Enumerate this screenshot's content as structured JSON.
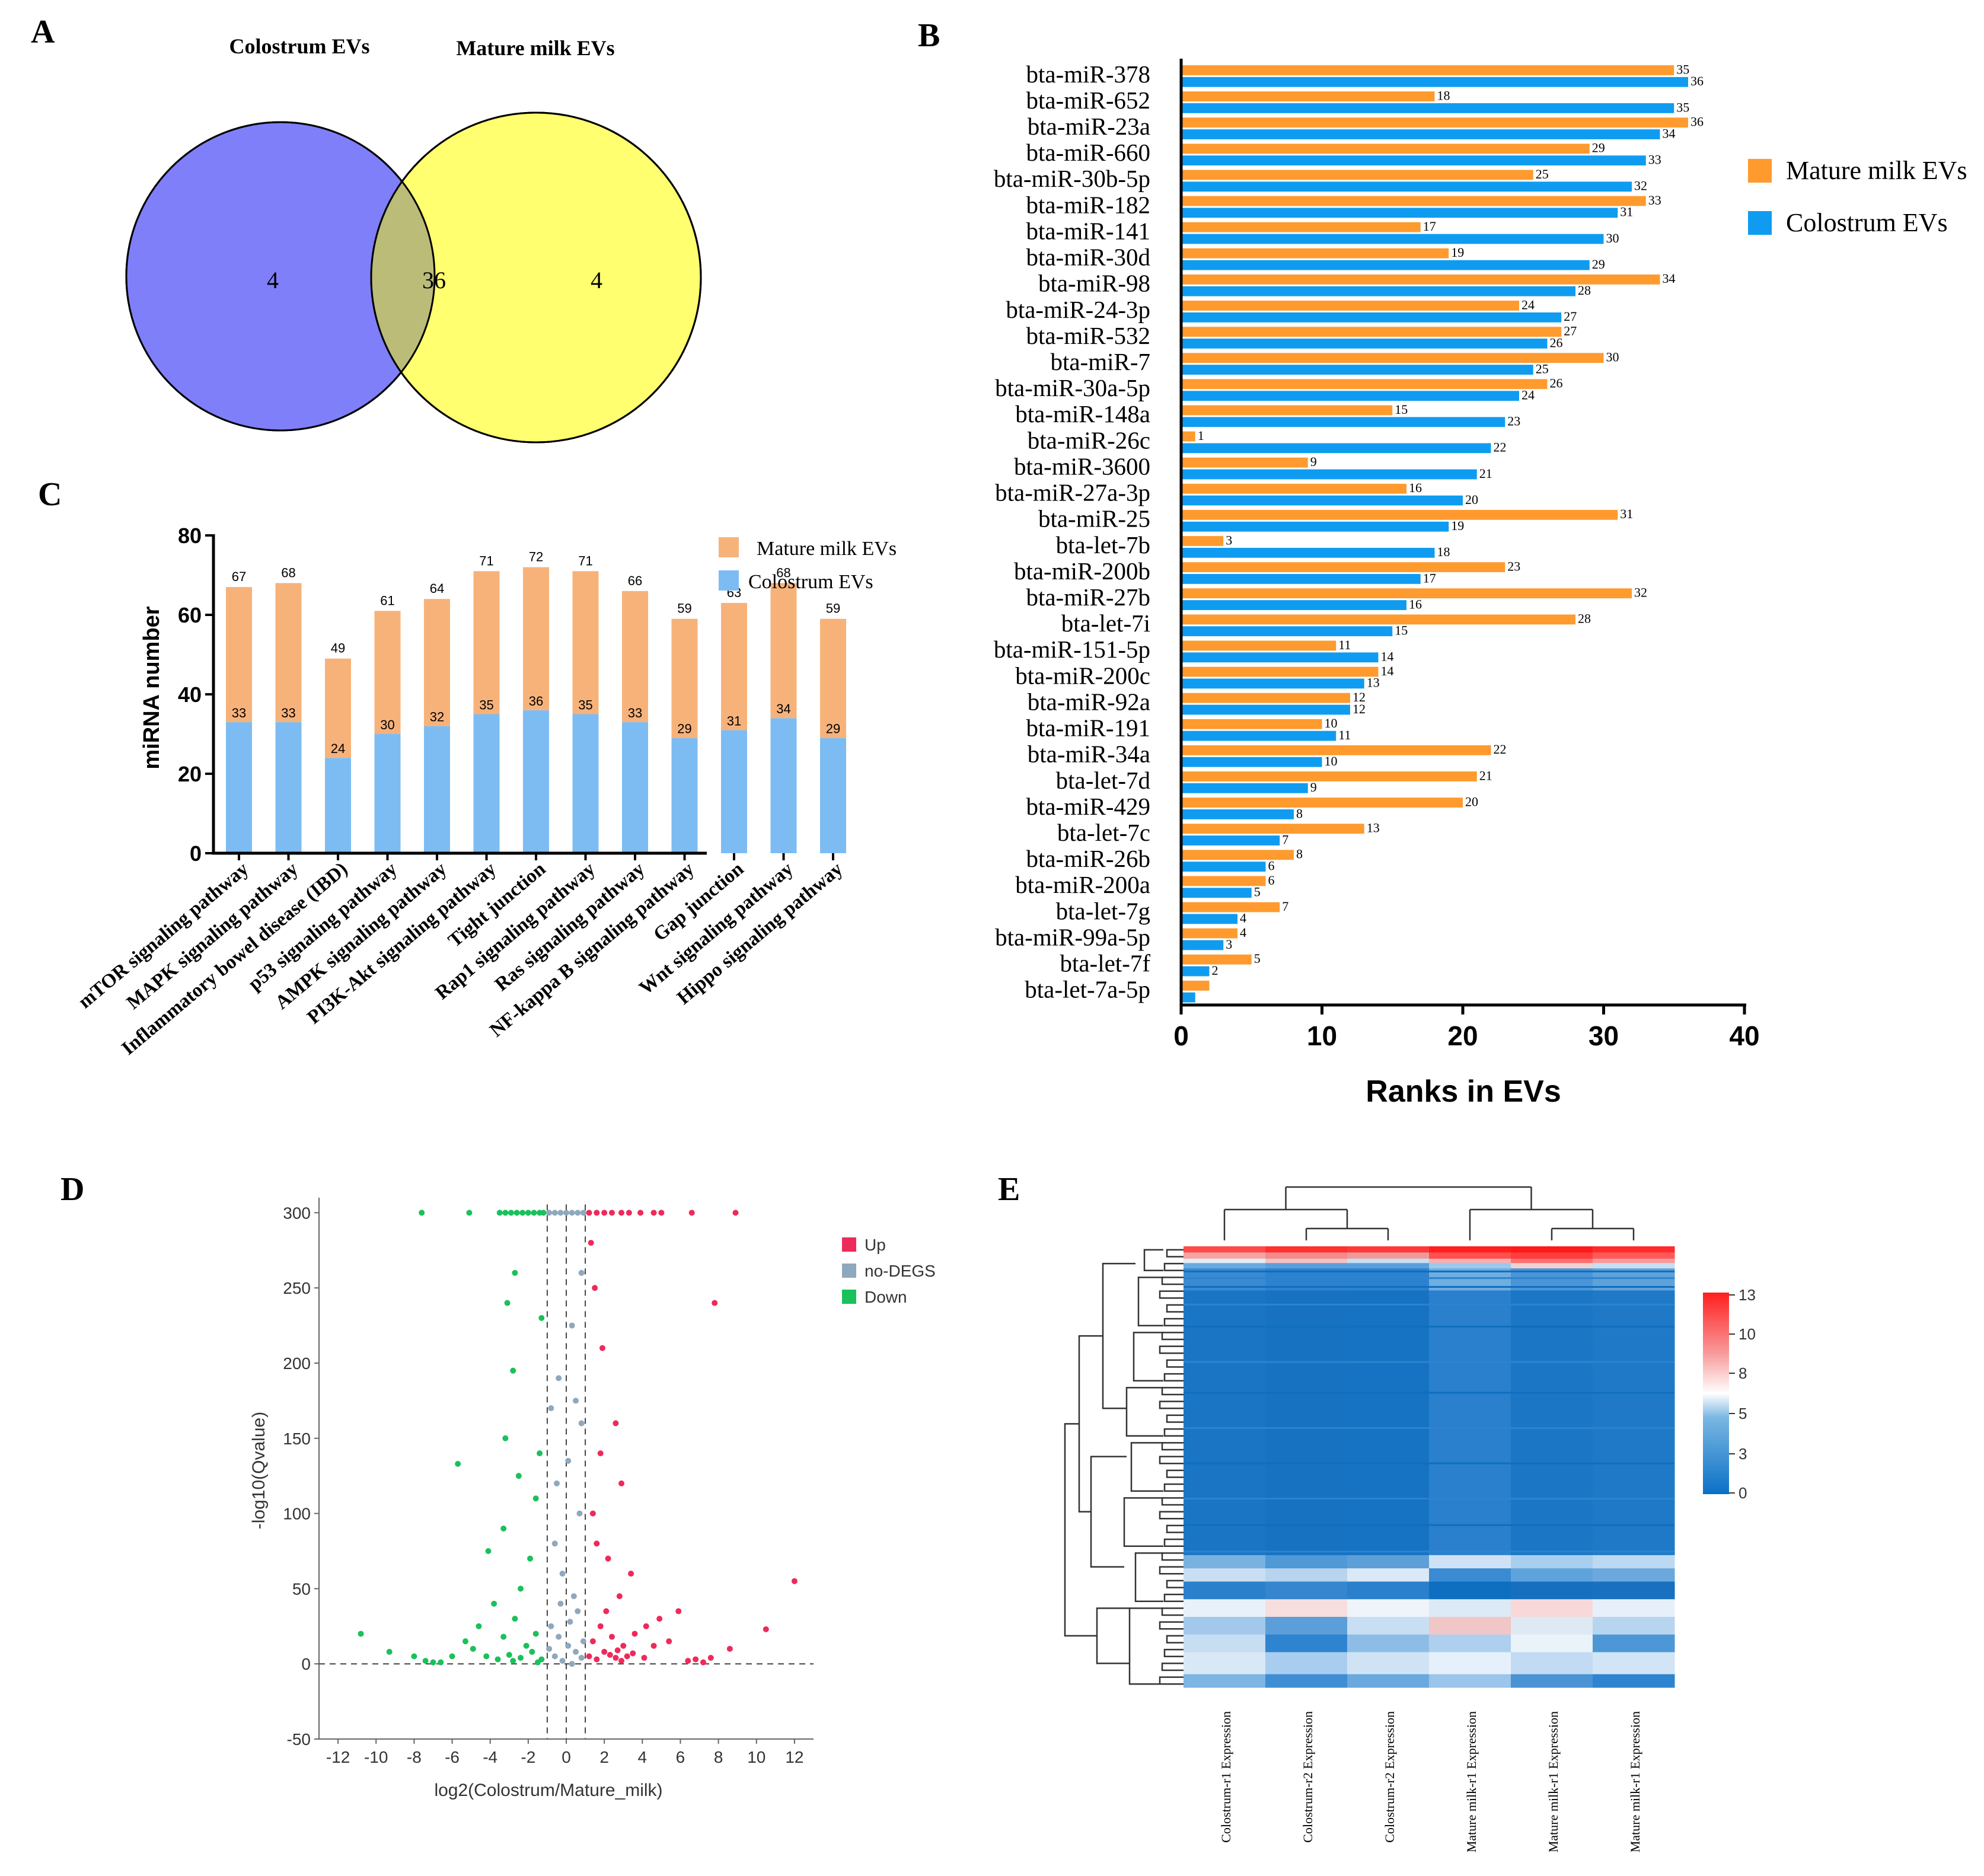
{
  "panels": {
    "A": {
      "label": "A",
      "left_title": "Colostrum EVs",
      "right_title": "Mature milk EVs",
      "left_only": "4",
      "overlap": "36",
      "right_only": "4",
      "colors": {
        "left": "#7f7ffa",
        "right": "#ffff70",
        "overlap": "#bcbc79"
      }
    },
    "B": {
      "label": "B"
    },
    "C": {
      "label": "C"
    },
    "D": {
      "label": "D"
    },
    "E": {
      "label": "E"
    }
  },
  "chart_data": [
    {
      "id": "B",
      "type": "bar",
      "orientation": "horizontal",
      "xlabel": "Ranks in EVs",
      "xlim": [
        0,
        40
      ],
      "xticks": [
        0,
        10,
        20,
        30,
        40
      ],
      "categories": [
        "bta-miR-378",
        "bta-miR-652",
        "bta-miR-23a",
        "bta-miR-660",
        "bta-miR-30b-5p",
        "bta-miR-182",
        "bta-miR-141",
        "bta-miR-30d",
        "bta-miR-98",
        "bta-miR-24-3p",
        "bta-miR-532",
        "bta-miR-7",
        "bta-miR-30a-5p",
        "bta-miR-148a",
        "bta-miR-26c",
        "bta-miR-3600",
        "bta-miR-27a-3p",
        "bta-miR-25",
        "bta-let-7b",
        "bta-miR-200b",
        "bta-miR-27b",
        "bta-let-7i",
        "bta-miR-151-5p",
        "bta-miR-200c",
        "bta-miR-92a",
        "bta-miR-191",
        "bta-miR-34a",
        "bta-let-7d",
        "bta-miR-429",
        "bta-let-7c",
        "bta-miR-26b",
        "bta-miR-200a",
        "bta-let-7g",
        "bta-miR-99a-5p",
        "bta-let-7f",
        "bta-let-7a-5p"
      ],
      "series": [
        {
          "name": "Mature milk EVs",
          "color": "#ff9a2e",
          "values": [
            35,
            18,
            36,
            29,
            25,
            33,
            17,
            19,
            34,
            24,
            27,
            30,
            26,
            15,
            1,
            9,
            16,
            31,
            3,
            23,
            32,
            28,
            11,
            14,
            12,
            10,
            22,
            21,
            20,
            13,
            8,
            6,
            7,
            4,
            5,
            2
          ],
          "labels": [
            "35",
            "18",
            "36",
            "29",
            "25",
            "33",
            "17",
            "19",
            "34",
            "24",
            "27",
            "30",
            "26",
            "15",
            "1",
            "9",
            "16",
            "31",
            "3",
            "23",
            "32",
            "28",
            "11",
            "14",
            "12",
            "10",
            "22",
            "21",
            "20",
            "13",
            "8",
            "6",
            "7",
            "4",
            "5",
            ""
          ]
        },
        {
          "name": "Colostrum EVs",
          "color": "#0f9cf0",
          "values": [
            36,
            35,
            34,
            33,
            32,
            31,
            30,
            29,
            28,
            27,
            26,
            25,
            24,
            23,
            22,
            21,
            20,
            19,
            18,
            17,
            16,
            15,
            14,
            13,
            12,
            11,
            10,
            9,
            8,
            7,
            6,
            5,
            4,
            3,
            2,
            1
          ],
          "labels": [
            "36",
            "35",
            "34",
            "33",
            "32",
            "31",
            "30",
            "29",
            "28",
            "27",
            "26",
            "25",
            "24",
            "23",
            "22",
            "21",
            "20",
            "19",
            "18",
            "17",
            "16",
            "15",
            "14",
            "13",
            "12",
            "11",
            "10",
            "9",
            "8",
            "7",
            "6",
            "5",
            "4",
            "3",
            "2",
            ""
          ]
        }
      ]
    },
    {
      "id": "C",
      "type": "bar",
      "stacked": true,
      "ylabel": "miRNA number",
      "ylim": [
        0,
        80
      ],
      "yticks": [
        0,
        20,
        40,
        60,
        80
      ],
      "categories": [
        "mTOR signaling pathway",
        "MAPK signaling pathway",
        "Inflammatory bowel disease (IBD)",
        "p53 signaling pathway",
        "AMPK signaling pathway",
        "PI3K-Akt signaling pathway",
        "Tight junction",
        "Rap1 signaling pathway",
        "Ras signaling pathway",
        "NF-kappa B signaling pathway",
        "Gap junction",
        "Wnt signaling pathway",
        "Hippo signaling pathway"
      ],
      "series": [
        {
          "name": "Colostrum EVs",
          "color": "#7dbcf3",
          "values": [
            33,
            33,
            24,
            30,
            32,
            35,
            36,
            35,
            33,
            29,
            31,
            34,
            29
          ]
        },
        {
          "name": "Mature milk EVs",
          "color": "#f7b27a",
          "values": [
            34,
            35,
            25,
            31,
            32,
            36,
            36,
            36,
            33,
            30,
            32,
            34,
            30
          ]
        }
      ],
      "totals": [
        67,
        68,
        49,
        61,
        64,
        71,
        72,
        71,
        66,
        59,
        63,
        68,
        59
      ]
    },
    {
      "id": "D",
      "type": "scatter",
      "title": "",
      "xlabel": "log2(Colostrum/Mature_milk)",
      "ylabel": "-log10(Qvalue)",
      "xlim": [
        -13,
        13
      ],
      "ylim": [
        -50,
        310
      ],
      "xticks": [
        -12,
        -10,
        -8,
        -6,
        -4,
        -2,
        0,
        2,
        4,
        6,
        8,
        10,
        12
      ],
      "yticks": [
        -50,
        0,
        50,
        100,
        150,
        200,
        250,
        300
      ],
      "threshold_lines": {
        "x": [
          -1,
          0,
          1
        ],
        "y": [
          0
        ]
      },
      "legend": [
        {
          "name": "Up",
          "color": "#ee2a5a"
        },
        {
          "name": "no-DEGS",
          "color": "#8fa8bd"
        },
        {
          "name": "Down",
          "color": "#1ac15b"
        }
      ],
      "series": [
        {
          "name": "Up",
          "color": "#ee2a5a",
          "points": [
            [
              1.2,
              300
            ],
            [
              1.6,
              300
            ],
            [
              2.0,
              300
            ],
            [
              2.4,
              300
            ],
            [
              2.9,
              300
            ],
            [
              3.3,
              300
            ],
            [
              3.9,
              300
            ],
            [
              4.6,
              300
            ],
            [
              5.0,
              300
            ],
            [
              6.6,
              300
            ],
            [
              8.9,
              300
            ],
            [
              7.8,
              240
            ],
            [
              1.3,
              280
            ],
            [
              1.5,
              250
            ],
            [
              1.9,
              210
            ],
            [
              2.6,
              160
            ],
            [
              2.9,
              120
            ],
            [
              1.8,
              140
            ],
            [
              1.4,
              100
            ],
            [
              1.6,
              80
            ],
            [
              2.2,
              70
            ],
            [
              3.4,
              60
            ],
            [
              2.8,
              45
            ],
            [
              2.1,
              35
            ],
            [
              4.9,
              30
            ],
            [
              5.9,
              35
            ],
            [
              4.2,
              25
            ],
            [
              3.6,
              20
            ],
            [
              12.0,
              55
            ],
            [
              10.5,
              23
            ],
            [
              8.6,
              10
            ],
            [
              1.2,
              5
            ],
            [
              1.6,
              3
            ],
            [
              2.0,
              8
            ],
            [
              2.3,
              6
            ],
            [
              2.6,
              4
            ],
            [
              2.9,
              2
            ],
            [
              3.2,
              5
            ],
            [
              3.5,
              7
            ],
            [
              4.1,
              4
            ],
            [
              4.6,
              12
            ],
            [
              5.4,
              15
            ],
            [
              6.4,
              2
            ],
            [
              6.8,
              3
            ],
            [
              7.2,
              1
            ],
            [
              7.6,
              4
            ],
            [
              1.4,
              15
            ],
            [
              1.8,
              25
            ],
            [
              2.4,
              18
            ],
            [
              2.7,
              9
            ],
            [
              3.0,
              12
            ]
          ]
        },
        {
          "name": "no-DEGS",
          "color": "#8fa8bd",
          "points": [
            [
              -0.9,
              300
            ],
            [
              -0.6,
              300
            ],
            [
              -0.3,
              300
            ],
            [
              0.0,
              300
            ],
            [
              0.3,
              300
            ],
            [
              0.6,
              300
            ],
            [
              0.9,
              300
            ],
            [
              0.8,
              260
            ],
            [
              0.3,
              225
            ],
            [
              -0.4,
              190
            ],
            [
              -0.8,
              170
            ],
            [
              0.5,
              175
            ],
            [
              0.1,
              135
            ],
            [
              -0.5,
              120
            ],
            [
              0.8,
              160
            ],
            [
              0.7,
              100
            ],
            [
              -0.6,
              80
            ],
            [
              -0.2,
              60
            ],
            [
              0.4,
              45
            ],
            [
              0.6,
              35
            ],
            [
              -0.8,
              25
            ],
            [
              -0.4,
              18
            ],
            [
              0.1,
              12
            ],
            [
              0.5,
              8
            ],
            [
              -0.6,
              5
            ],
            [
              0.8,
              4
            ],
            [
              -0.2,
              2
            ],
            [
              0.3,
              0
            ],
            [
              -0.9,
              10
            ],
            [
              0.9,
              15
            ],
            [
              0.2,
              28
            ],
            [
              -0.3,
              40
            ]
          ]
        },
        {
          "name": "Down",
          "color": "#1ac15b",
          "points": [
            [
              -7.6,
              300
            ],
            [
              -5.1,
              300
            ],
            [
              -3.5,
              300
            ],
            [
              -3.2,
              300
            ],
            [
              -2.9,
              300
            ],
            [
              -2.6,
              300
            ],
            [
              -2.3,
              300
            ],
            [
              -2.0,
              300
            ],
            [
              -1.7,
              300
            ],
            [
              -1.4,
              300
            ],
            [
              -1.2,
              300
            ],
            [
              -2.7,
              260
            ],
            [
              -3.1,
              240
            ],
            [
              -1.3,
              230
            ],
            [
              -2.8,
              195
            ],
            [
              -3.2,
              150
            ],
            [
              -5.7,
              133
            ],
            [
              -1.4,
              140
            ],
            [
              -2.5,
              125
            ],
            [
              -1.6,
              110
            ],
            [
              -4.1,
              75
            ],
            [
              -3.3,
              90
            ],
            [
              -1.9,
              70
            ],
            [
              -2.4,
              50
            ],
            [
              -3.8,
              40
            ],
            [
              -4.6,
              25
            ],
            [
              -5.3,
              15
            ],
            [
              -2.7,
              30
            ],
            [
              -1.6,
              20
            ],
            [
              -10.8,
              20
            ],
            [
              -9.3,
              8
            ],
            [
              -8.0,
              5
            ],
            [
              -7.0,
              1
            ],
            [
              -7.4,
              2
            ],
            [
              -6.6,
              1
            ],
            [
              -4.2,
              5
            ],
            [
              -3.6,
              3
            ],
            [
              -3.0,
              6
            ],
            [
              -2.4,
              4
            ],
            [
              -1.8,
              8
            ],
            [
              -1.3,
              3
            ],
            [
              -2.1,
              12
            ],
            [
              -3.3,
              18
            ],
            [
              -4.9,
              10
            ],
            [
              -6.0,
              5
            ],
            [
              -2.8,
              2
            ],
            [
              -1.5,
              1
            ]
          ]
        }
      ]
    },
    {
      "id": "E",
      "type": "heatmap",
      "columns": [
        "Colostrum-r1 Expression",
        "Colostrum-r2 Expression",
        "Colostrum-r2 Expression",
        "Mature milk-r1 Expression",
        "Mature milk-r1 Expression",
        "Mature milk-r1 Expression"
      ],
      "colorbar": {
        "min": 0,
        "max": 13,
        "ticks": [
          "13",
          "10",
          "8",
          "5",
          "3",
          "0"
        ],
        "colors": [
          "#0a70c6",
          "#ffffff",
          "#ff2020"
        ]
      }
    }
  ]
}
